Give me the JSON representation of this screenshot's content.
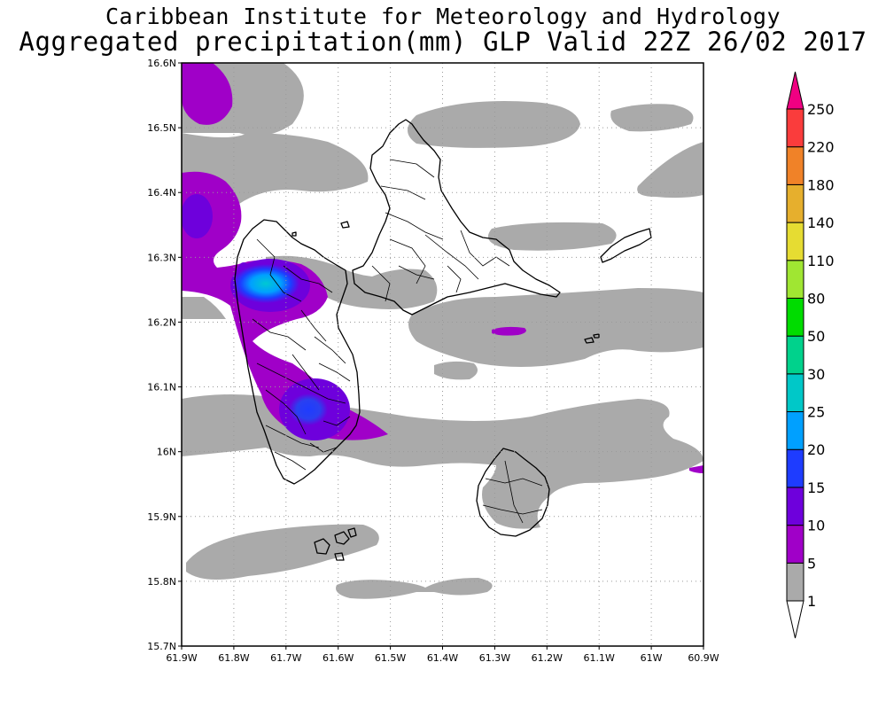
{
  "header": {
    "institute": "Caribbean Institute for Meteorology and Hydrology",
    "product": "Aggregated precipitation(mm) GLP Valid 22Z 26/02 2017"
  },
  "map": {
    "lat_ticks": [
      "16.6N",
      "16.5N",
      "16.4N",
      "16.3N",
      "16.2N",
      "16.1N",
      "16N",
      "15.9N",
      "15.8N",
      "15.7N"
    ],
    "lon_ticks": [
      "61.9W",
      "61.8W",
      "61.7W",
      "61.6W",
      "61.5W",
      "61.4W",
      "61.3W",
      "61.2W",
      "61.1W",
      "61W",
      "60.9W"
    ],
    "grid": true
  },
  "legend": {
    "levels": [
      "1",
      "5",
      "10",
      "15",
      "20",
      "25",
      "30",
      "50",
      "80",
      "110",
      "140",
      "180",
      "220",
      "250"
    ],
    "colors": [
      "#aaaaaa",
      "#a000c8",
      "#6e00dc",
      "#1e3cff",
      "#00a0ff",
      "#00c8c8",
      "#00d28c",
      "#00dc00",
      "#a0e632",
      "#e6dc32",
      "#e6af2d",
      "#f08228",
      "#fa3c3c",
      "#f00082"
    ]
  }
}
